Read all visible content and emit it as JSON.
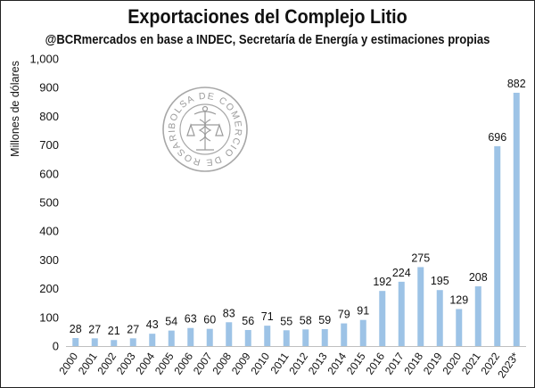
{
  "chart_data": {
    "type": "bar",
    "title": "Exportaciones del Complejo Litio",
    "subtitle": "@BCRmercados en base a INDEC, Secretaría de Energía y estimaciones propias",
    "ylabel": "Millones de dólares",
    "xlabel": "",
    "ylim": [
      0,
      1000
    ],
    "yticks": [
      "0",
      "100",
      "200",
      "300",
      "400",
      "500",
      "600",
      "700",
      "800",
      "900",
      "1,000"
    ],
    "grid": false,
    "legend": "none",
    "bar_color": "#9dc3e6",
    "categories": [
      "2000",
      "2001",
      "2002",
      "2003",
      "2004",
      "2005",
      "2006",
      "2007",
      "2008",
      "2009",
      "2010",
      "2011",
      "2012",
      "2013",
      "2014",
      "2015",
      "2016",
      "2017",
      "2018",
      "2019",
      "2020",
      "2021",
      "2022",
      "2023*"
    ],
    "values": [
      28,
      27,
      21,
      27,
      43,
      54,
      63,
      60,
      83,
      56,
      71,
      55,
      58,
      59,
      79,
      91,
      192,
      224,
      275,
      195,
      129,
      208,
      696,
      882
    ],
    "value_labels": [
      "28",
      "27",
      "21",
      "27",
      "43",
      "54",
      "63",
      "60",
      "83",
      "56",
      "71",
      "55",
      "58",
      "59",
      "79",
      "91",
      "192",
      "224",
      "275",
      "195",
      "129",
      "208",
      "696",
      "882"
    ]
  },
  "watermark": {
    "text": "BOLSA DE COMERCIO DE ROSARIO",
    "icon": "caduceus-scales-seal-icon"
  }
}
